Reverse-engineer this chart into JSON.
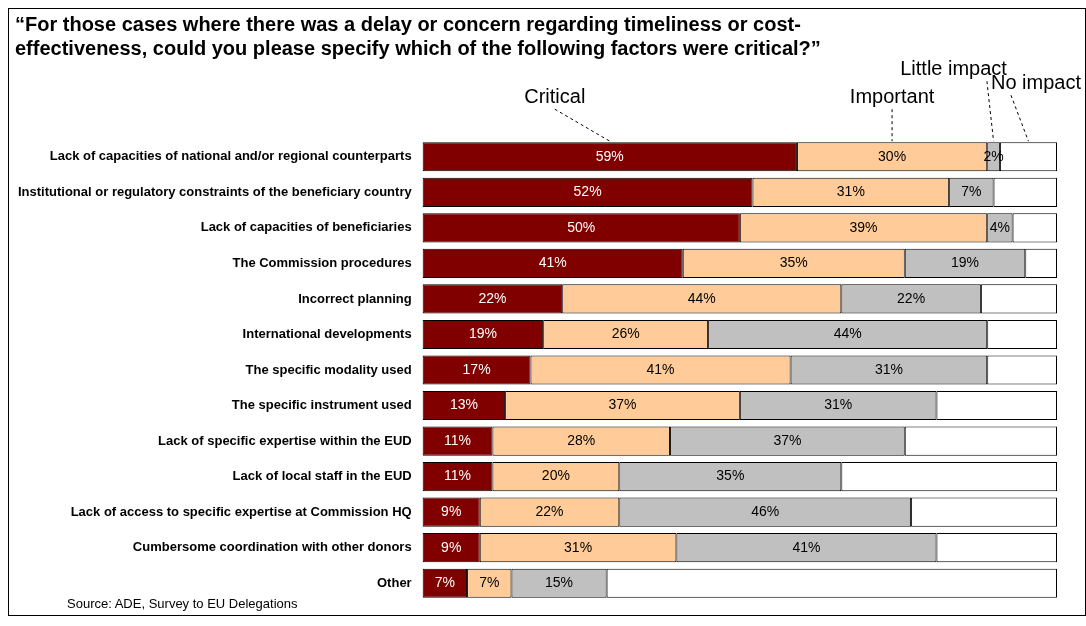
{
  "chart_data": {
    "type": "bar",
    "orientation": "horizontal",
    "stacked": true,
    "legend": false,
    "grid": false,
    "title": "“For those cases where there was a delay or concern regarding timeliness or cost-effectiveness, could you please specify which of the following factors were critical?”",
    "annotations": [
      "Source: ADE, Survey to EU Delegations"
    ],
    "categories": [
      "Lack of capacities of national and/or regional counterparts",
      "Institutional or regulatory constraints of the beneficiary country",
      "Lack of capacities of beneficiaries",
      "The Commission procedures",
      "Incorrect planning",
      "International developments",
      "The specific modality used",
      "The specific instrument used",
      "Lack of specific expertise within the EUD",
      "Lack of local staff in the EUD",
      "Lack of access to specific expertise at Commission HQ",
      "Cumbersome coordination with other donors",
      "Other"
    ],
    "xlim": [
      0,
      100
    ],
    "series": [
      {
        "name": "Critical",
        "color": "#800000",
        "values": [
          59,
          52,
          50,
          41,
          22,
          19,
          17,
          13,
          11,
          11,
          9,
          9,
          7
        ],
        "value_labels": [
          "59%",
          "52%",
          "50%",
          "41%",
          "22%",
          "19%",
          "17%",
          "13%",
          "11%",
          "11%",
          "9%",
          "9%",
          "7%"
        ]
      },
      {
        "name": "Important",
        "color": "#ffcc99",
        "values": [
          30,
          31,
          39,
          35,
          44,
          26,
          41,
          37,
          28,
          20,
          22,
          31,
          7
        ],
        "value_labels": [
          "30%",
          "31%",
          "39%",
          "35%",
          "44%",
          "26%",
          "41%",
          "37%",
          "28%",
          "20%",
          "22%",
          "31%",
          "7%"
        ]
      },
      {
        "name": "Little impact",
        "color": "#c0c0c0",
        "values": [
          2,
          7,
          4,
          19,
          22,
          44,
          31,
          31,
          37,
          35,
          46,
          41,
          15
        ],
        "value_labels": [
          "2%",
          "7%",
          "4%",
          "19%",
          "22%",
          "44%",
          "31%",
          "31%",
          "37%",
          "35%",
          "46%",
          "41%",
          "15%"
        ]
      },
      {
        "name": "No impact",
        "color": "#ffffff",
        "values": [
          9,
          10,
          7,
          5,
          12,
          11,
          11,
          19,
          24,
          34,
          23,
          19,
          71
        ]
      }
    ]
  }
}
